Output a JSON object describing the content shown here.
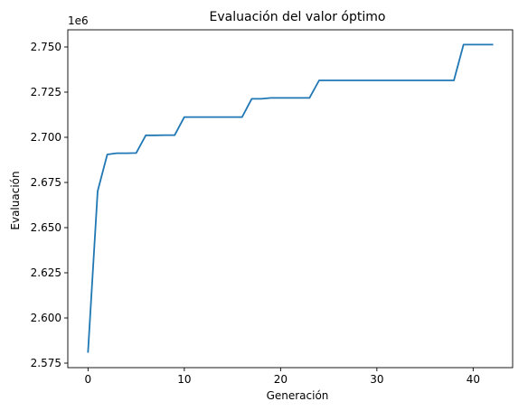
{
  "chart_data": {
    "type": "line",
    "title": "Evaluación del valor óptimo",
    "xlabel": "Generación",
    "ylabel": "Evaluación",
    "y_offset_label": "1e6",
    "xlim": [
      -2.1,
      44.1
    ],
    "ylim": [
      2.5725,
      2.7595
    ],
    "y_scale_factor": 1000000,
    "xticks": [
      0,
      10,
      20,
      30,
      40
    ],
    "xtick_labels": [
      "0",
      "10",
      "20",
      "30",
      "40"
    ],
    "yticks": [
      2.575,
      2.6,
      2.625,
      2.65,
      2.675,
      2.7,
      2.725,
      2.75
    ],
    "ytick_labels": [
      "2.575",
      "2.600",
      "2.625",
      "2.650",
      "2.675",
      "2.700",
      "2.725",
      "2.750"
    ],
    "grid": false,
    "colors": {
      "line": "#1f77b4",
      "axes": "#000000"
    },
    "series": [
      {
        "x": [
          0,
          1,
          2,
          3,
          4,
          5,
          6,
          7,
          8,
          9,
          10,
          11,
          12,
          13,
          14,
          15,
          16,
          17,
          18,
          19,
          20,
          21,
          22,
          23,
          24,
          25,
          26,
          27,
          28,
          29,
          30,
          31,
          32,
          33,
          34,
          35,
          36,
          37,
          38,
          39,
          40,
          41,
          42
        ],
        "values": [
          2.5812,
          2.6702,
          2.6905,
          2.6912,
          2.6912,
          2.6913,
          2.7011,
          2.7011,
          2.7012,
          2.7012,
          2.7112,
          2.7112,
          2.7112,
          2.7112,
          2.7112,
          2.7112,
          2.7112,
          2.7213,
          2.7213,
          2.7218,
          2.7218,
          2.7218,
          2.7218,
          2.7218,
          2.7315,
          2.7315,
          2.7315,
          2.7315,
          2.7315,
          2.7315,
          2.7315,
          2.7315,
          2.7315,
          2.7315,
          2.7315,
          2.7315,
          2.7315,
          2.7315,
          2.7315,
          2.7513,
          2.7513,
          2.7513,
          2.7513
        ]
      }
    ]
  }
}
